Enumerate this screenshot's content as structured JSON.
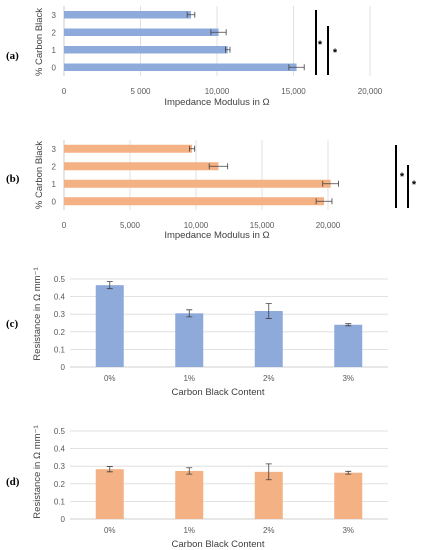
{
  "colors": {
    "blue": "#8eaadb",
    "orange": "#f4b183"
  },
  "chart_data": [
    {
      "panel": "(a)",
      "type": "bar",
      "orientation": "horizontal",
      "categories": [
        "0",
        "1",
        "2",
        "3"
      ],
      "values": [
        15200,
        10700,
        10100,
        8300
      ],
      "errors": [
        500,
        150,
        500,
        250
      ],
      "xlabel": "Impedance Modulus in Ω",
      "ylabel": "% Carbon Black",
      "xlim": [
        0,
        20000
      ],
      "xticks": [
        "0",
        "5 000",
        "10,000",
        "15,000",
        "20,000"
      ],
      "significance": [
        "*",
        "*"
      ],
      "color": "blue",
      "grid": true
    },
    {
      "panel": "(b)",
      "type": "bar",
      "orientation": "horizontal",
      "categories": [
        "0",
        "1",
        "2",
        "3"
      ],
      "values": [
        19700,
        20200,
        11700,
        9700
      ],
      "errors": [
        600,
        600,
        700,
        200
      ],
      "xlabel": "Impedance Modulus in Ω",
      "ylabel": "% Carbon Black",
      "xlim": [
        0,
        25000
      ],
      "xticks": [
        "0",
        "5,000",
        "10,000",
        "15,000",
        "20,000"
      ],
      "significance": [
        "*",
        "*"
      ],
      "color": "orange",
      "grid": true
    },
    {
      "panel": "(c)",
      "type": "bar",
      "orientation": "vertical",
      "categories": [
        "0%",
        "1%",
        "2%",
        "3%"
      ],
      "values": [
        0.465,
        0.305,
        0.318,
        0.24
      ],
      "errors": [
        0.02,
        0.02,
        0.042,
        0.006
      ],
      "xlabel": "Carbon Black Content",
      "ylabel": "Resistance in Ω mm⁻¹",
      "ylim": [
        0,
        0.5
      ],
      "yticks": [
        "0",
        "0.1",
        "0.2",
        "0.3",
        "0.4",
        "0.5"
      ],
      "color": "blue",
      "grid": true
    },
    {
      "panel": "(d)",
      "type": "bar",
      "orientation": "vertical",
      "categories": [
        "0%",
        "1%",
        "2%",
        "3%"
      ],
      "values": [
        0.283,
        0.273,
        0.268,
        0.263
      ],
      "errors": [
        0.015,
        0.018,
        0.045,
        0.008
      ],
      "xlabel": "Carbon Black Content",
      "ylabel": "Resistance in Ω mm⁻¹",
      "ylim": [
        0,
        0.5
      ],
      "yticks": [
        "0",
        "0.1",
        "0.2",
        "0.3",
        "0.4",
        "0.5"
      ],
      "color": "orange",
      "grid": true
    }
  ]
}
